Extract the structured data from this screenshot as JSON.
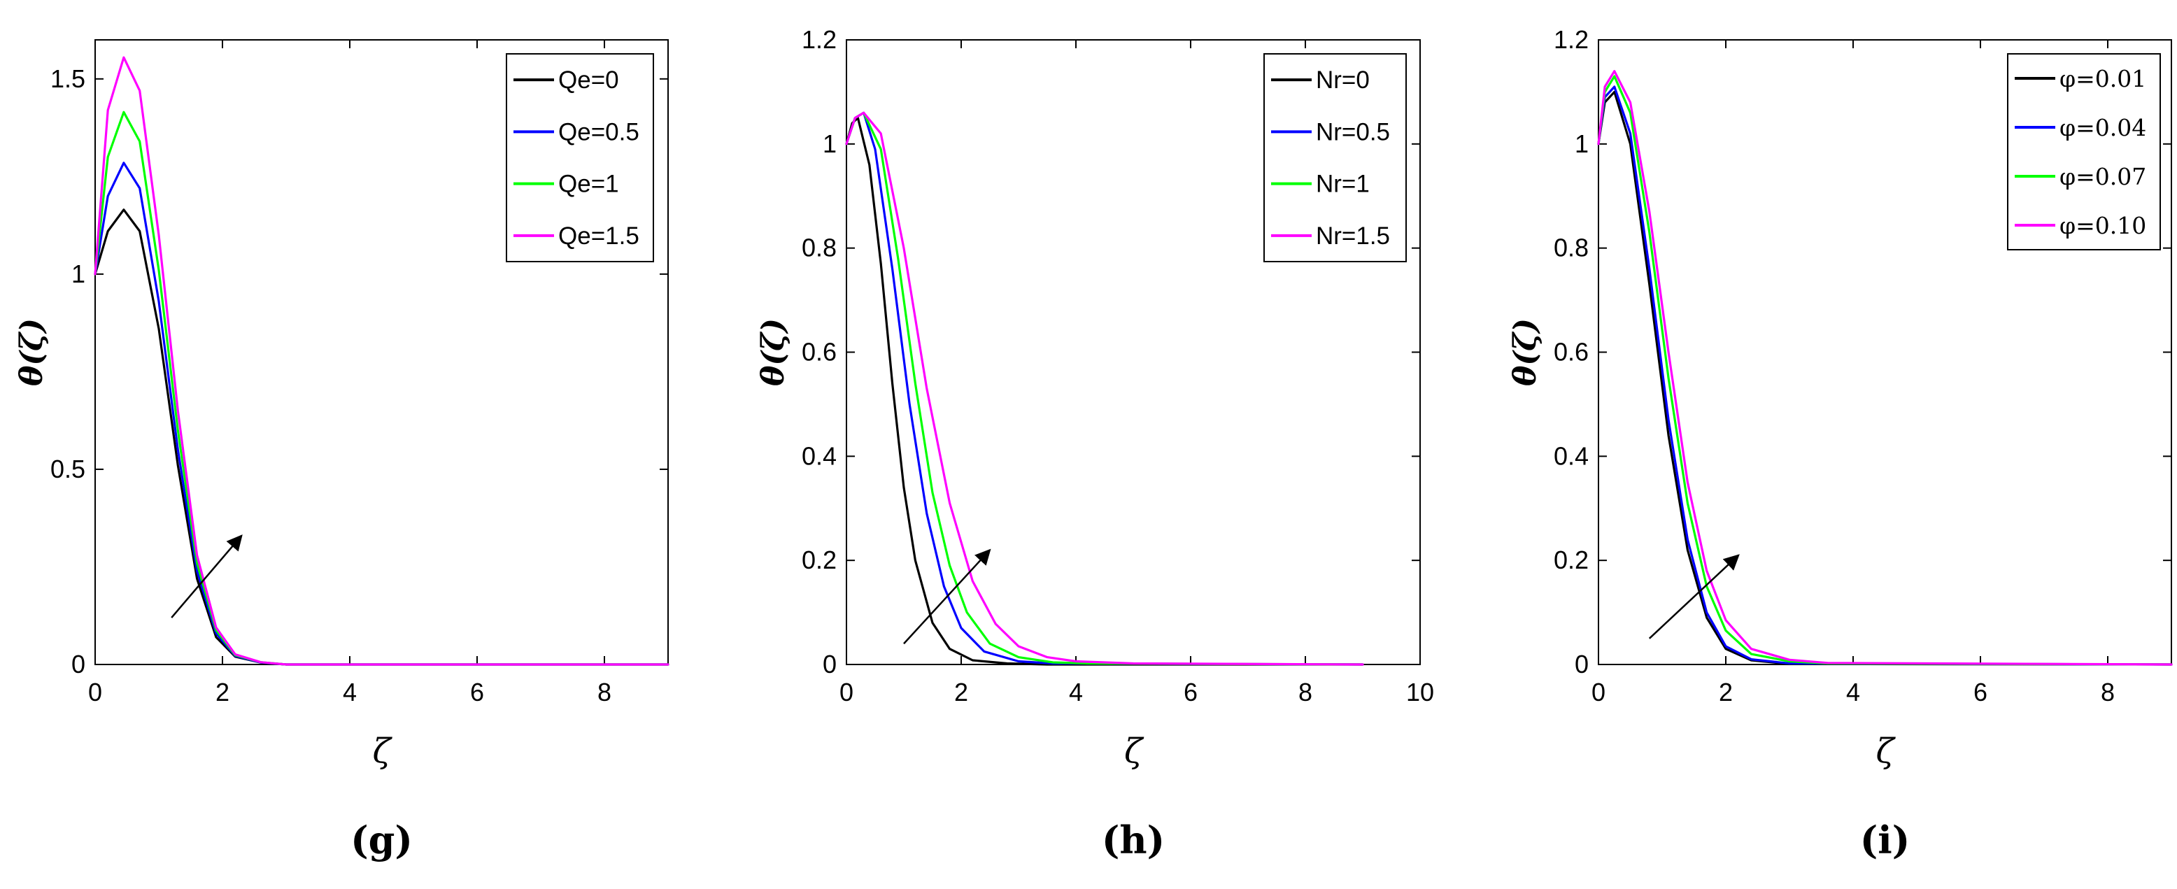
{
  "chart_data": [
    {
      "type": "line",
      "panel_label": "(g)",
      "ylabel": "θ(ζ)",
      "xlabel": "ζ",
      "xlim": [
        0,
        9
      ],
      "ylim": [
        0,
        1.6
      ],
      "xticks": [
        0,
        2,
        4,
        6,
        8
      ],
      "yticks": [
        0,
        0.5,
        1,
        1.5
      ],
      "ytick_labels": [
        "0",
        "0.5",
        "1",
        "1.5"
      ],
      "legend_location": "top-right",
      "legend_style": "sans",
      "series": [
        {
          "name": "Qe=0",
          "color": "#000000",
          "x": [
            0,
            0.2,
            0.45,
            0.7,
            1.0,
            1.3,
            1.6,
            1.9,
            2.2,
            2.6,
            3.0,
            9.0
          ],
          "values": [
            1.0,
            1.11,
            1.165,
            1.11,
            0.86,
            0.51,
            0.22,
            0.07,
            0.02,
            0.005,
            0.0,
            0.0
          ]
        },
        {
          "name": "Qe=0.5",
          "color": "#0000ff",
          "x": [
            0,
            0.2,
            0.45,
            0.7,
            1.0,
            1.3,
            1.6,
            1.9,
            2.2,
            2.6,
            3.0,
            9.0
          ],
          "values": [
            1.0,
            1.2,
            1.285,
            1.22,
            0.93,
            0.55,
            0.24,
            0.08,
            0.022,
            0.005,
            0.0,
            0.0
          ]
        },
        {
          "name": "Qe=1",
          "color": "#00ff00",
          "x": [
            0,
            0.2,
            0.45,
            0.7,
            1.0,
            1.3,
            1.6,
            1.9,
            2.2,
            2.6,
            3.0,
            9.0
          ],
          "values": [
            1.0,
            1.3,
            1.415,
            1.34,
            1.01,
            0.6,
            0.26,
            0.088,
            0.024,
            0.006,
            0.0,
            0.0
          ]
        },
        {
          "name": "Qe=1.5",
          "color": "#ff00ff",
          "x": [
            0,
            0.2,
            0.45,
            0.7,
            1.0,
            1.3,
            1.6,
            1.9,
            2.2,
            2.6,
            3.0,
            9.0
          ],
          "values": [
            1.0,
            1.42,
            1.555,
            1.47,
            1.1,
            0.65,
            0.28,
            0.095,
            0.026,
            0.006,
            0.0,
            0.0
          ]
        }
      ],
      "arrow": {
        "from": [
          1.2,
          0.12
        ],
        "to": [
          2.3,
          0.33
        ]
      }
    },
    {
      "type": "line",
      "panel_label": "(h)",
      "ylabel": "θ(ζ)",
      "xlabel": "ζ",
      "xlim": [
        0,
        10
      ],
      "ylim": [
        0,
        1.2
      ],
      "xticks": [
        0,
        2,
        4,
        6,
        8,
        10
      ],
      "yticks": [
        0,
        0.2,
        0.4,
        0.6,
        0.8,
        1,
        1.2
      ],
      "ytick_labels": [
        "0",
        "0.2",
        "0.4",
        "0.6",
        "0.8",
        "1",
        "1.2"
      ],
      "legend_location": "top-right",
      "legend_style": "sans",
      "series": [
        {
          "name": "Nr=0",
          "color": "#000000",
          "x": [
            0,
            0.1,
            0.2,
            0.4,
            0.6,
            0.8,
            1.0,
            1.2,
            1.5,
            1.8,
            2.2,
            2.8,
            3.5,
            9.0
          ],
          "values": [
            1.0,
            1.04,
            1.05,
            0.96,
            0.77,
            0.54,
            0.34,
            0.2,
            0.08,
            0.03,
            0.008,
            0.002,
            0.0,
            0.0
          ]
        },
        {
          "name": "Nr=0.5",
          "color": "#0000ff",
          "x": [
            0,
            0.15,
            0.3,
            0.5,
            0.8,
            1.1,
            1.4,
            1.7,
            2.0,
            2.4,
            3.0,
            3.6,
            9.0
          ],
          "values": [
            1.0,
            1.05,
            1.06,
            0.99,
            0.76,
            0.5,
            0.29,
            0.15,
            0.07,
            0.025,
            0.006,
            0.002,
            0.0
          ]
        },
        {
          "name": "Nr=1",
          "color": "#00ff00",
          "x": [
            0,
            0.15,
            0.3,
            0.6,
            0.9,
            1.2,
            1.5,
            1.8,
            2.1,
            2.5,
            3.0,
            3.6,
            4.2,
            9.0
          ],
          "values": [
            1.0,
            1.05,
            1.06,
            0.99,
            0.78,
            0.54,
            0.33,
            0.19,
            0.1,
            0.04,
            0.014,
            0.004,
            0.002,
            0.0
          ]
        },
        {
          "name": "Nr=1.5",
          "color": "#ff00ff",
          "x": [
            0,
            0.15,
            0.3,
            0.6,
            1.0,
            1.4,
            1.8,
            2.2,
            2.6,
            3.0,
            3.5,
            4.0,
            5.0,
            9.0
          ],
          "values": [
            1.0,
            1.05,
            1.06,
            1.02,
            0.8,
            0.53,
            0.31,
            0.16,
            0.078,
            0.035,
            0.014,
            0.006,
            0.002,
            0.0
          ]
        }
      ],
      "arrow": {
        "from": [
          1.0,
          0.04
        ],
        "to": [
          2.5,
          0.22
        ]
      }
    },
    {
      "type": "line",
      "panel_label": "(i)",
      "ylabel": "θ(ζ)",
      "xlabel": "ζ",
      "xlim": [
        0,
        9
      ],
      "ylim": [
        0,
        1.2
      ],
      "xticks": [
        0,
        2,
        4,
        6,
        8
      ],
      "yticks": [
        0,
        0.2,
        0.4,
        0.6,
        0.8,
        1,
        1.2
      ],
      "ytick_labels": [
        "0",
        "0.2",
        "0.4",
        "0.6",
        "0.8",
        "1",
        "1.2"
      ],
      "legend_location": "top-right",
      "legend_style": "phi",
      "series": [
        {
          "name": "φ=0.01",
          "color": "#000000",
          "x": [
            0,
            0.1,
            0.25,
            0.5,
            0.8,
            1.1,
            1.4,
            1.7,
            2.0,
            2.4,
            3.0,
            9.0
          ],
          "values": [
            1.0,
            1.08,
            1.1,
            1.0,
            0.73,
            0.44,
            0.22,
            0.09,
            0.03,
            0.008,
            0.001,
            0.0
          ]
        },
        {
          "name": "φ=0.04",
          "color": "#0000ff",
          "x": [
            0,
            0.1,
            0.25,
            0.5,
            0.8,
            1.1,
            1.4,
            1.7,
            2.0,
            2.4,
            3.0,
            9.0
          ],
          "values": [
            1.0,
            1.09,
            1.11,
            1.02,
            0.76,
            0.47,
            0.24,
            0.1,
            0.035,
            0.01,
            0.002,
            0.0
          ]
        },
        {
          "name": "φ=0.07",
          "color": "#00ff00",
          "x": [
            0,
            0.1,
            0.25,
            0.5,
            0.8,
            1.1,
            1.4,
            1.7,
            2.0,
            2.4,
            3.0,
            3.6,
            9.0
          ],
          "values": [
            1.0,
            1.1,
            1.13,
            1.06,
            0.83,
            0.55,
            0.31,
            0.15,
            0.065,
            0.02,
            0.006,
            0.002,
            0.0
          ]
        },
        {
          "name": "φ=0.10",
          "color": "#ff00ff",
          "x": [
            0,
            0.1,
            0.25,
            0.5,
            0.8,
            1.1,
            1.4,
            1.7,
            2.0,
            2.4,
            3.0,
            3.6,
            9.0
          ],
          "values": [
            1.0,
            1.11,
            1.14,
            1.08,
            0.87,
            0.6,
            0.35,
            0.18,
            0.085,
            0.03,
            0.009,
            0.003,
            0.0
          ]
        }
      ],
      "arrow": {
        "from": [
          0.8,
          0.05
        ],
        "to": [
          2.2,
          0.21
        ]
      }
    }
  ]
}
